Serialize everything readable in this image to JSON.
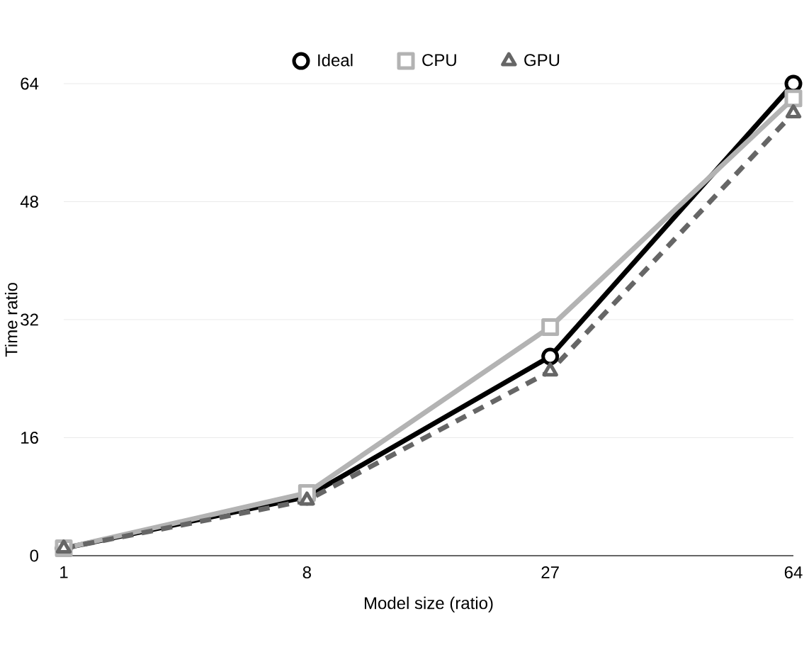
{
  "chart_data": {
    "type": "line",
    "xlabel": "Model size (ratio)",
    "ylabel": "Time ratio",
    "categories": [
      "1",
      "8",
      "27",
      "64"
    ],
    "series": [
      {
        "name": "Ideal",
        "color": "#000000",
        "values": [
          1,
          8,
          27,
          64
        ],
        "marker": "circle",
        "line_style": "solid"
      },
      {
        "name": "CPU",
        "color": "#b3b3b3",
        "values": [
          1,
          8.5,
          31,
          62
        ],
        "marker": "square",
        "line_style": "solid"
      },
      {
        "name": "GPU",
        "color": "#666666",
        "values": [
          1,
          7.5,
          25,
          60
        ],
        "marker": "triangle",
        "line_style": "dashed"
      }
    ],
    "ylim": [
      0,
      64
    ],
    "yticks": [
      0,
      16,
      32,
      48,
      64
    ],
    "grid": "y",
    "legend": "top"
  }
}
